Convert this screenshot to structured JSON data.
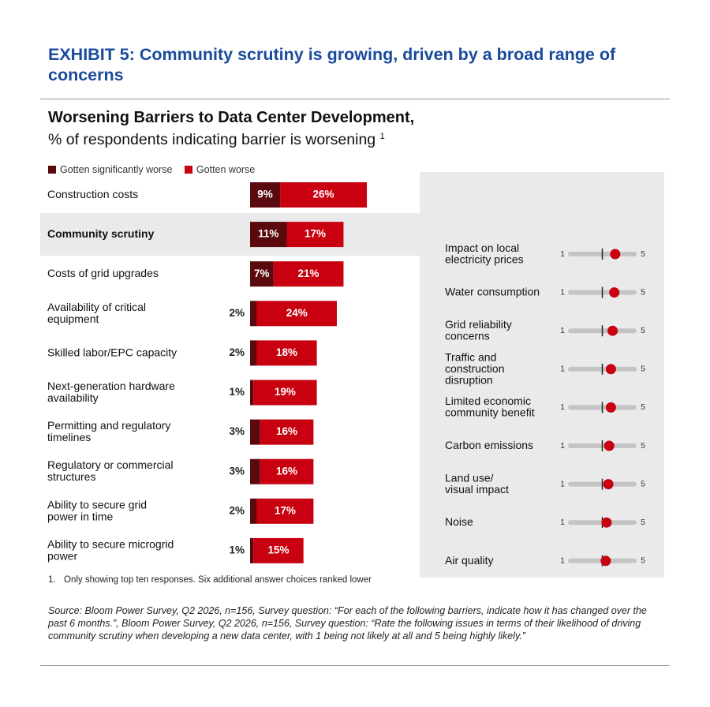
{
  "exhibit_title": "EXHIBIT 5: Community scrutiny is growing, driven by a broad range of concerns",
  "chart_title": "Worsening Barriers to Data Center Development,",
  "chart_subtitle": "% of respondents indicating barrier is worsening",
  "chart_subtitle_sup": "1",
  "colors": {
    "significantly_worse": "#5a0a0e",
    "worse": "#c8000f",
    "highlight": "#eaeaea",
    "slider_track": "#c4c4c4",
    "slider_dot": "#c8000f",
    "title_blue": "#1a4a9c"
  },
  "chart_data": [
    {
      "type": "bar",
      "stacked": true,
      "orientation": "horizontal",
      "legend": [
        "Gotten significantly worse",
        "Gotten worse"
      ],
      "legend_position": "top-left",
      "highlighted_category": "Community scrutiny",
      "categories": [
        "Construction costs",
        "Community scrutiny",
        "Costs of grid upgrades",
        "Availability of critical equipment",
        "Skilled labor/EPC capacity",
        "Next-generation hardware availability",
        "Permitting and regulatory timelines",
        "Regulatory or commercial structures",
        "Ability to secure grid power in time",
        "Ability to secure microgrid power"
      ],
      "series": [
        {
          "name": "Gotten significantly worse",
          "values": [
            9,
            11,
            7,
            2,
            2,
            1,
            3,
            3,
            2,
            1
          ],
          "labels": [
            "9%",
            "11%",
            "7%",
            "2%",
            "2%",
            "1%",
            "3%",
            "3%",
            "2%",
            "1%"
          ]
        },
        {
          "name": "Gotten worse",
          "values": [
            26,
            17,
            21,
            24,
            18,
            19,
            16,
            16,
            17,
            15
          ],
          "labels": [
            "26%",
            "17%",
            "21%",
            "24%",
            "18%",
            "19%",
            "16%",
            "16%",
            "17%",
            "15%"
          ]
        }
      ]
    },
    {
      "type": "scatter",
      "subtype": "slider-rating",
      "scale_min_label": "1",
      "scale_max_label": "5",
      "xlim": [
        1,
        5
      ],
      "midpoint": 3,
      "categories": [
        "Impact on local electricity prices",
        "Water consumption",
        "Grid reliability concerns",
        "Traffic and construction disruption",
        "Limited economic community benefit",
        "Carbon emissions",
        "Land use/ visual impact",
        "Noise",
        "Air quality"
      ],
      "values": [
        3.75,
        3.7,
        3.6,
        3.5,
        3.5,
        3.4,
        3.35,
        3.25,
        3.2
      ]
    }
  ],
  "footnote_number": "1.",
  "footnote_text": "Only showing top ten responses. Six additional answer choices ranked lower",
  "source": "Source: Bloom Power Survey, Q2 2026, n=156, Survey question: “For each of the following barriers, indicate how it has changed over the past 6 months.”, Bloom Power Survey, Q2 2026, n=156, Survey question: “Rate the following issues in terms of their likelihood of driving community scrutiny when developing a new data center, with 1 being not likely at all and 5 being highly likely.”"
}
